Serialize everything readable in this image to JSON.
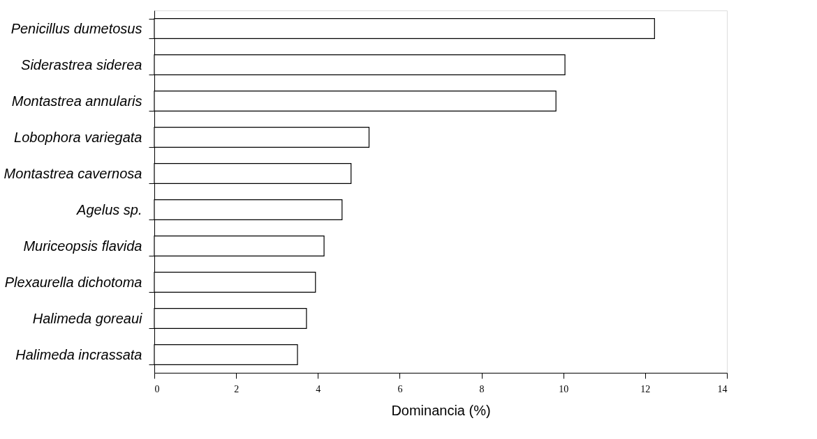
{
  "chart_data": {
    "type": "bar",
    "orientation": "horizontal",
    "xlabel": "Dominancia (%)",
    "categories": [
      "Penicillus dumetosus",
      "Siderastrea siderea",
      "Montastrea annularis",
      "Lobophora variegata",
      "Montastrea cavernosa",
      "Agelus sp.",
      "Muriceopsis flavida",
      "Plexaurella dichotoma",
      "Halimeda goreaui",
      "Halimeda incrassata"
    ],
    "values": [
      12.23,
      10.04,
      9.82,
      5.25,
      4.81,
      4.59,
      4.15,
      3.94,
      3.72,
      3.5
    ],
    "color": "#ffffff",
    "xlim": [
      0,
      14
    ],
    "xticks": [
      0,
      2,
      4,
      6,
      8,
      10,
      12,
      14
    ],
    "grid": false
  }
}
